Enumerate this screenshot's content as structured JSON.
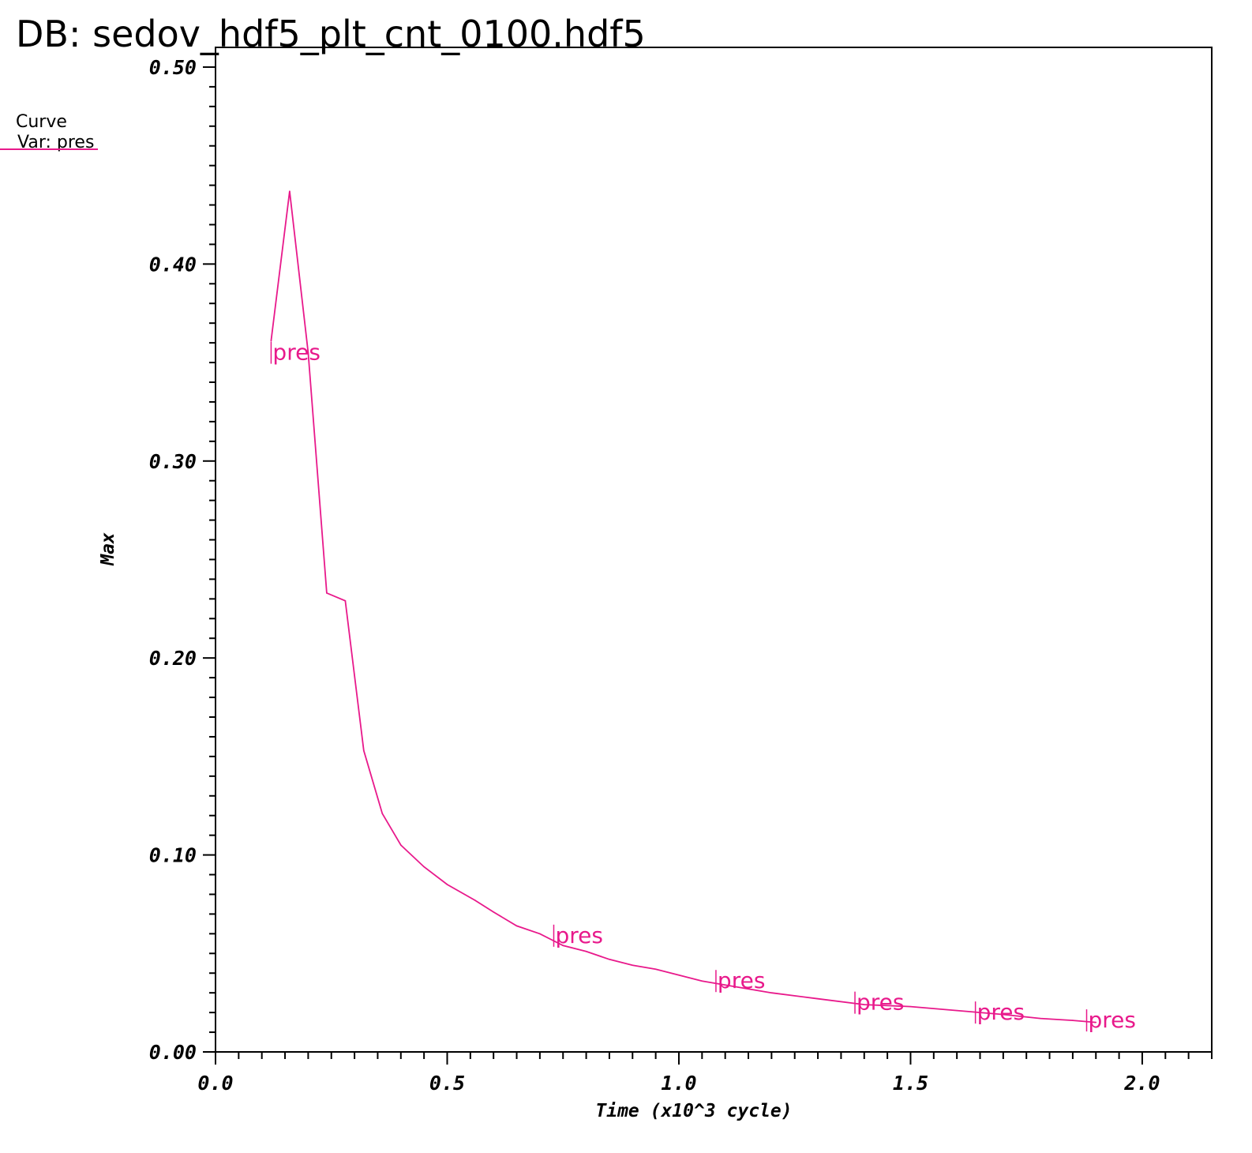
{
  "header": {
    "db_label": "DB: sedov_hdf5_plt_cnt_0100.hdf5"
  },
  "legend": {
    "line1": "Curve",
    "line2": "Var: pres"
  },
  "colors": {
    "curve": "#e8198b",
    "axis": "#000000",
    "background": "#ffffff"
  },
  "chart_data": {
    "type": "line",
    "title": "",
    "xlabel": "Time (x10^3 cycle)",
    "ylabel": "Max",
    "xlim": [
      0.0,
      2.15
    ],
    "ylim": [
      0.0,
      0.51
    ],
    "x_ticks": [
      "0.0",
      "0.5",
      "1.0",
      "1.5",
      "2.0"
    ],
    "x_tick_values": [
      0.0,
      0.5,
      1.0,
      1.5,
      2.0
    ],
    "y_ticks": [
      "0.00",
      "0.10",
      "0.20",
      "0.30",
      "0.40",
      "0.50"
    ],
    "y_tick_values": [
      0.0,
      0.1,
      0.2,
      0.3,
      0.4,
      0.5
    ],
    "grid": false,
    "legend_position": "top-left",
    "series": [
      {
        "name": "pres",
        "x": [
          0.12,
          0.16,
          0.2,
          0.24,
          0.28,
          0.32,
          0.36,
          0.4,
          0.45,
          0.5,
          0.56,
          0.6,
          0.65,
          0.7,
          0.75,
          0.8,
          0.85,
          0.9,
          0.95,
          1.0,
          1.05,
          1.1,
          1.2,
          1.3,
          1.4,
          1.5,
          1.6,
          1.7,
          1.78,
          1.85,
          1.9
        ],
        "y": [
          0.361,
          0.437,
          0.355,
          0.233,
          0.229,
          0.153,
          0.121,
          0.105,
          0.094,
          0.085,
          0.077,
          0.071,
          0.064,
          0.06,
          0.054,
          0.051,
          0.047,
          0.044,
          0.042,
          0.039,
          0.036,
          0.034,
          0.03,
          0.027,
          0.024,
          0.023,
          0.021,
          0.019,
          0.017,
          0.016,
          0.015
        ]
      }
    ],
    "curve_labels": [
      {
        "text": "pres",
        "x": 0.12,
        "y": 0.355
      },
      {
        "text": "pres",
        "x": 0.73,
        "y": 0.059
      },
      {
        "text": "pres",
        "x": 1.08,
        "y": 0.036
      },
      {
        "text": "pres",
        "x": 1.38,
        "y": 0.025
      },
      {
        "text": "pres",
        "x": 1.64,
        "y": 0.02
      },
      {
        "text": "pres",
        "x": 1.88,
        "y": 0.016
      }
    ]
  }
}
